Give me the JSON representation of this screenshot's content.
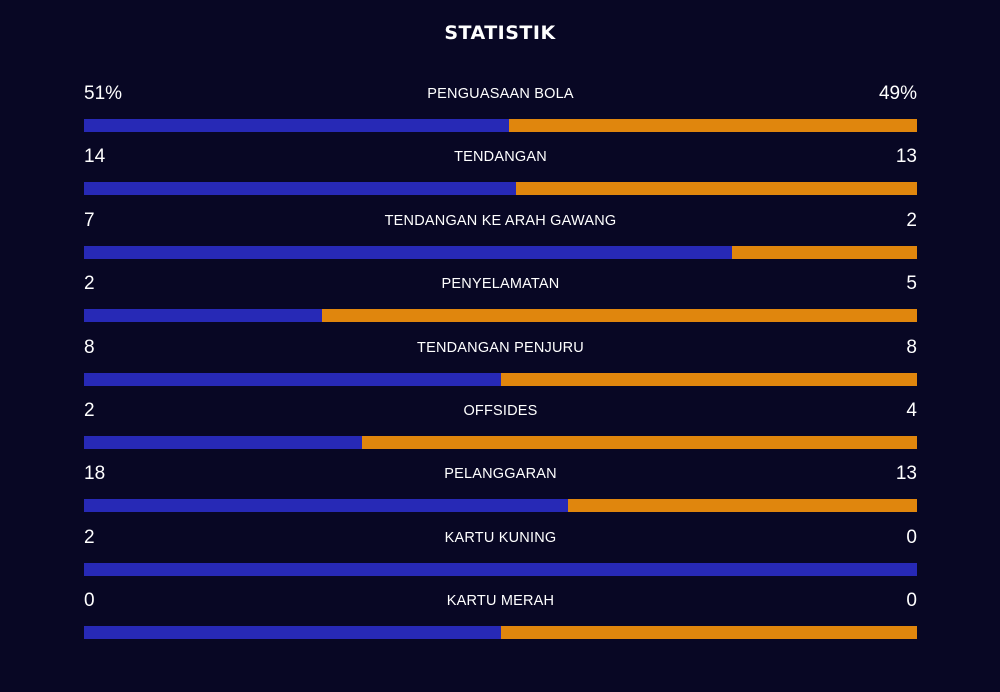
{
  "title": "STATISTIK",
  "colors": {
    "background": "#080724",
    "home": "#2729b6",
    "away": "#e0860d"
  },
  "stats": [
    {
      "label": "PENGUASAAN BOLA",
      "home": "51%",
      "away": "49%",
      "home_value": 51,
      "away_value": 49
    },
    {
      "label": "TENDANGAN",
      "home": "14",
      "away": "13",
      "home_value": 14,
      "away_value": 13
    },
    {
      "label": "TENDANGAN KE ARAH GAWANG",
      "home": "7",
      "away": "2",
      "home_value": 7,
      "away_value": 2
    },
    {
      "label": "PENYELAMATAN",
      "home": "2",
      "away": "5",
      "home_value": 2,
      "away_value": 5
    },
    {
      "label": "TENDANGAN PENJURU",
      "home": "8",
      "away": "8",
      "home_value": 8,
      "away_value": 8
    },
    {
      "label": "OFFSIDES",
      "home": "2",
      "away": "4",
      "home_value": 2,
      "away_value": 4
    },
    {
      "label": "PELANGGARAN",
      "home": "18",
      "away": "13",
      "home_value": 18,
      "away_value": 13
    },
    {
      "label": "KARTU KUNING",
      "home": "2",
      "away": "0",
      "home_value": 2,
      "away_value": 0
    },
    {
      "label": "KARTU MERAH",
      "home": "0",
      "away": "0",
      "home_value": 0,
      "away_value": 0
    }
  ]
}
